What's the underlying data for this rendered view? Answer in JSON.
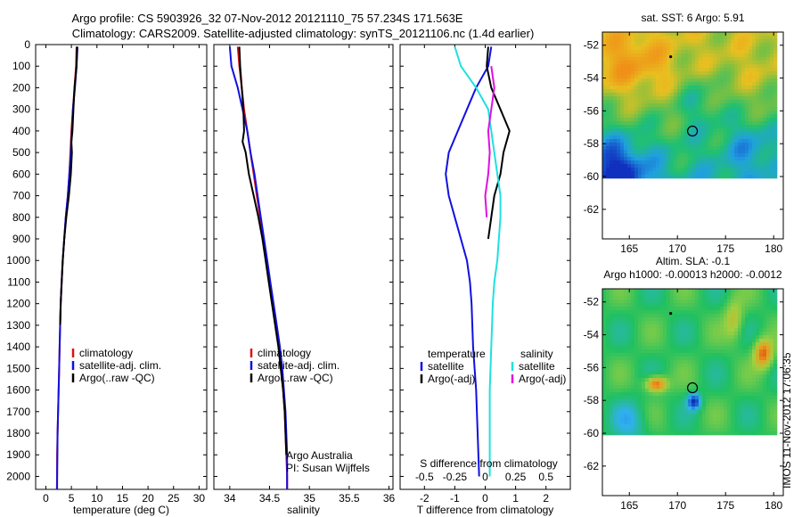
{
  "header": {
    "line1": "Argo profile: CS 5903926_32 07-Nov-2012 20121110_75 57.234S 171.563E",
    "line2": "Climatology: CARS2009. Satellite-adjusted climatology: synTS_20121106.nc (1.4d earlier)"
  },
  "depth_ticks": [
    0,
    100,
    200,
    300,
    400,
    500,
    600,
    700,
    800,
    900,
    1000,
    1100,
    1200,
    1300,
    1400,
    1500,
    1600,
    1700,
    1800,
    1900,
    2000
  ],
  "colors": {
    "red": "#e01010",
    "blue": "#1010e0",
    "black": "#000000",
    "cyan": "#20e0e0",
    "magenta": "#e010e0"
  },
  "chart_data": [
    {
      "type": "line",
      "id": "temperature",
      "xlabel": "temperature (deg C)",
      "x_ticks": [
        0,
        5,
        10,
        15,
        20,
        25,
        30
      ],
      "xlim": [
        -2,
        31.5
      ],
      "ylim": [
        0,
        2060
      ],
      "legend": [
        "climatology",
        "satellite-adj. clim.",
        "Argo(..raw -QC)"
      ],
      "series": [
        {
          "name": "climatology",
          "color": "red",
          "points": [
            [
              6,
              10
            ],
            [
              5.9,
              100
            ],
            [
              5.6,
              200
            ],
            [
              5.3,
              300
            ],
            [
              5,
              400
            ],
            [
              4.8,
              500
            ],
            [
              4.6,
              600
            ],
            [
              4.3,
              700
            ],
            [
              3.9,
              800
            ],
            [
              3.6,
              900
            ],
            [
              3.3,
              1000
            ],
            [
              3.1,
              1100
            ],
            [
              2.9,
              1200
            ],
            [
              2.8,
              1300
            ],
            [
              2.7,
              1400
            ],
            [
              2.6,
              1500
            ],
            [
              2.5,
              1600
            ],
            [
              2.4,
              1700
            ],
            [
              2.3,
              1800
            ],
            [
              2.2,
              1900
            ],
            [
              2.2,
              2000
            ],
            [
              2.15,
              2060
            ]
          ]
        },
        {
          "name": "satellite-adj. clim.",
          "color": "blue",
          "points": [
            [
              6.2,
              10
            ],
            [
              6,
              100
            ],
            [
              5.7,
              200
            ],
            [
              5.3,
              300
            ],
            [
              5.1,
              400
            ],
            [
              4.9,
              500
            ],
            [
              4.6,
              600
            ],
            [
              4.3,
              700
            ],
            [
              3.9,
              800
            ],
            [
              3.6,
              900
            ],
            [
              3.3,
              1000
            ],
            [
              3.1,
              1100
            ],
            [
              2.9,
              1200
            ],
            [
              2.8,
              1300
            ],
            [
              2.7,
              1400
            ],
            [
              2.6,
              1500
            ],
            [
              2.5,
              1600
            ],
            [
              2.4,
              1700
            ],
            [
              2.3,
              1800
            ],
            [
              2.25,
              1900
            ],
            [
              2.2,
              2000
            ],
            [
              2.2,
              2060
            ]
          ]
        },
        {
          "name": "Argo(..raw -QC)",
          "color": "black",
          "points": [
            [
              6.1,
              10
            ],
            [
              6,
              100
            ],
            [
              5.6,
              200
            ],
            [
              5.4,
              300
            ],
            [
              5.2,
              400
            ],
            [
              5,
              450
            ],
            [
              5.1,
              500
            ],
            [
              4.9,
              600
            ],
            [
              4.5,
              700
            ],
            [
              4,
              800
            ],
            [
              3.6,
              900
            ],
            [
              3.3,
              1000
            ],
            [
              3.1,
              1100
            ],
            [
              2.9,
              1200
            ],
            [
              2.8,
              1300
            ]
          ]
        }
      ]
    },
    {
      "type": "line",
      "id": "salinity",
      "xlabel": "salinity",
      "x_ticks": [
        34,
        34.5,
        35,
        35.5,
        36
      ],
      "xlim": [
        33.8,
        36.05
      ],
      "ylim": [
        0,
        2060
      ],
      "legend": [
        "climatology",
        "satellite-adj. clim.",
        "Argo(..raw -QC)"
      ],
      "annotation": [
        "Argo Australia",
        "PI: Susan Wijffels"
      ],
      "series": [
        {
          "name": "climatology",
          "color": "red",
          "points": [
            [
              34.1,
              10
            ],
            [
              34.12,
              100
            ],
            [
              34.15,
              200
            ],
            [
              34.18,
              300
            ],
            [
              34.22,
              400
            ],
            [
              34.26,
              500
            ],
            [
              34.3,
              600
            ],
            [
              34.34,
              700
            ],
            [
              34.38,
              800
            ],
            [
              34.42,
              900
            ],
            [
              34.46,
              1000
            ],
            [
              34.5,
              1100
            ],
            [
              34.54,
              1200
            ],
            [
              34.58,
              1300
            ],
            [
              34.62,
              1400
            ],
            [
              34.65,
              1500
            ],
            [
              34.67,
              1600
            ],
            [
              34.69,
              1700
            ],
            [
              34.7,
              1800
            ],
            [
              34.71,
              1900
            ],
            [
              34.72,
              2000
            ],
            [
              34.72,
              2060
            ]
          ]
        },
        {
          "name": "satellite-adj. clim.",
          "color": "blue",
          "points": [
            [
              34,
              10
            ],
            [
              34.02,
              100
            ],
            [
              34.1,
              200
            ],
            [
              34.16,
              300
            ],
            [
              34.22,
              400
            ],
            [
              34.26,
              500
            ],
            [
              34.31,
              600
            ],
            [
              34.35,
              700
            ],
            [
              34.39,
              800
            ],
            [
              34.43,
              900
            ],
            [
              34.47,
              1000
            ],
            [
              34.51,
              1100
            ],
            [
              34.55,
              1200
            ],
            [
              34.59,
              1300
            ],
            [
              34.63,
              1400
            ],
            [
              34.66,
              1500
            ],
            [
              34.68,
              1600
            ],
            [
              34.7,
              1700
            ],
            [
              34.71,
              1800
            ],
            [
              34.72,
              1900
            ],
            [
              34.72,
              2000
            ],
            [
              34.72,
              2060
            ]
          ]
        },
        {
          "name": "Argo(..raw -QC)",
          "color": "black",
          "points": [
            [
              34.12,
              10
            ],
            [
              34.13,
              100
            ],
            [
              34.15,
              200
            ],
            [
              34.17,
              300
            ],
            [
              34.18,
              400
            ],
            [
              34.16,
              450
            ],
            [
              34.2,
              500
            ],
            [
              34.24,
              600
            ],
            [
              34.3,
              700
            ],
            [
              34.36,
              800
            ],
            [
              34.41,
              900
            ],
            [
              34.45,
              1000
            ],
            [
              34.49,
              1100
            ],
            [
              34.53,
              1200
            ],
            [
              34.57,
              1300
            ],
            [
              34.61,
              1400
            ],
            [
              34.64,
              1500
            ],
            [
              34.67,
              1600
            ],
            [
              34.69,
              1700
            ],
            [
              34.7,
              1800
            ],
            [
              34.71,
              1900
            ]
          ]
        }
      ]
    },
    {
      "type": "line",
      "id": "difference",
      "xlabel": "T difference from climatology",
      "x_ticks": [
        -2,
        -1,
        0,
        1,
        2
      ],
      "s_label": "S difference from climatology",
      "s_ticks": [
        -0.5,
        -0.25,
        0,
        0.25,
        0.5
      ],
      "xlim": [
        -2.8,
        2.8
      ],
      "ylim": [
        0,
        2060
      ],
      "legend_temperature": {
        "title": "temperature",
        "items": [
          "satellite",
          "Argo(-adj)"
        ]
      },
      "legend_salinity": {
        "title": "salinity",
        "items": [
          "satellite",
          "Argo(-adj)"
        ]
      },
      "series": [
        {
          "name": "satellite",
          "group": "temperature",
          "color": "blue",
          "points": [
            [
              0.2,
              10
            ],
            [
              0.1,
              100
            ],
            [
              -0.3,
              200
            ],
            [
              -0.6,
              300
            ],
            [
              -0.9,
              400
            ],
            [
              -1.2,
              500
            ],
            [
              -1.3,
              600
            ],
            [
              -1.2,
              700
            ],
            [
              -1,
              800
            ],
            [
              -0.8,
              900
            ],
            [
              -0.6,
              1000
            ],
            [
              -0.5,
              1100
            ],
            [
              -0.45,
              1200
            ],
            [
              -0.4,
              1400
            ],
            [
              -0.3,
              1600
            ],
            [
              -0.25,
              1800
            ],
            [
              -0.2,
              2000
            ]
          ]
        },
        {
          "name": "Argo(-adj)",
          "group": "temperature",
          "color": "black",
          "points": [
            [
              0.1,
              10
            ],
            [
              0.05,
              100
            ],
            [
              0.2,
              200
            ],
            [
              0.5,
              300
            ],
            [
              0.8,
              400
            ],
            [
              0.6,
              500
            ],
            [
              0.5,
              600
            ],
            [
              0.3,
              700
            ],
            [
              0.2,
              800
            ],
            [
              0.1,
              900
            ]
          ]
        },
        {
          "name": "satellite",
          "group": "salinity",
          "color": "cyan",
          "points": [
            [
              -1,
              10
            ],
            [
              -0.8,
              100
            ],
            [
              -0.3,
              200
            ],
            [
              0.1,
              300
            ],
            [
              0.2,
              400
            ],
            [
              0.3,
              500
            ],
            [
              0.4,
              600
            ],
            [
              0.5,
              700
            ],
            [
              0.5,
              800
            ],
            [
              0.45,
              900
            ],
            [
              0.4,
              1000
            ],
            [
              0.3,
              1100
            ],
            [
              0.25,
              1200
            ],
            [
              0.2,
              1400
            ],
            [
              0.15,
              1600
            ],
            [
              0.15,
              1800
            ],
            [
              0.15,
              2000
            ]
          ]
        },
        {
          "name": "Argo(-adj)",
          "group": "salinity",
          "color": "magenta",
          "points": [
            [
              0.2,
              100
            ],
            [
              0.3,
              200
            ],
            [
              0.2,
              300
            ],
            [
              0.1,
              400
            ],
            [
              0.15,
              500
            ],
            [
              0.1,
              600
            ],
            [
              0,
              700
            ],
            [
              0.05,
              800
            ]
          ]
        }
      ]
    },
    {
      "type": "heatmap",
      "id": "sst",
      "title": "sat. SST: 6 Argo: 5.91",
      "x_ticks": [
        165,
        170,
        175,
        180
      ],
      "y_ticks": [
        -52,
        -54,
        -56,
        -58,
        -60,
        -62
      ],
      "xlim": [
        162.2,
        181
      ],
      "ylim": [
        -63.8,
        -51.2
      ],
      "data_extent": {
        "x": [
          162.2,
          180.2
        ],
        "y": [
          -60.1,
          -51.2
        ]
      },
      "argo_position": [
        171.56,
        -57.23
      ],
      "float_position": [
        169.3,
        -52.7
      ],
      "scale": "warm"
    },
    {
      "type": "heatmap",
      "id": "sla",
      "title": "Altim. SLA: -0.1",
      "subtitle": "Argo h1000: -0.00013 h2000: -0.0012",
      "x_ticks": [
        165,
        170,
        175,
        180
      ],
      "y_ticks": [
        -52,
        -54,
        -56,
        -58,
        -60,
        -62
      ],
      "xlim": [
        162.2,
        181
      ],
      "ylim": [
        -63.8,
        -51.2
      ],
      "data_extent": {
        "x": [
          162.2,
          180.2
        ],
        "y": [
          -60.1,
          -51.2
        ]
      },
      "argo_position": [
        171.56,
        -57.23
      ],
      "float_position": [
        169.3,
        -52.7
      ],
      "scale": "anomaly"
    }
  ],
  "footer": "IMOS 11-Nov-2012 17:06:35"
}
